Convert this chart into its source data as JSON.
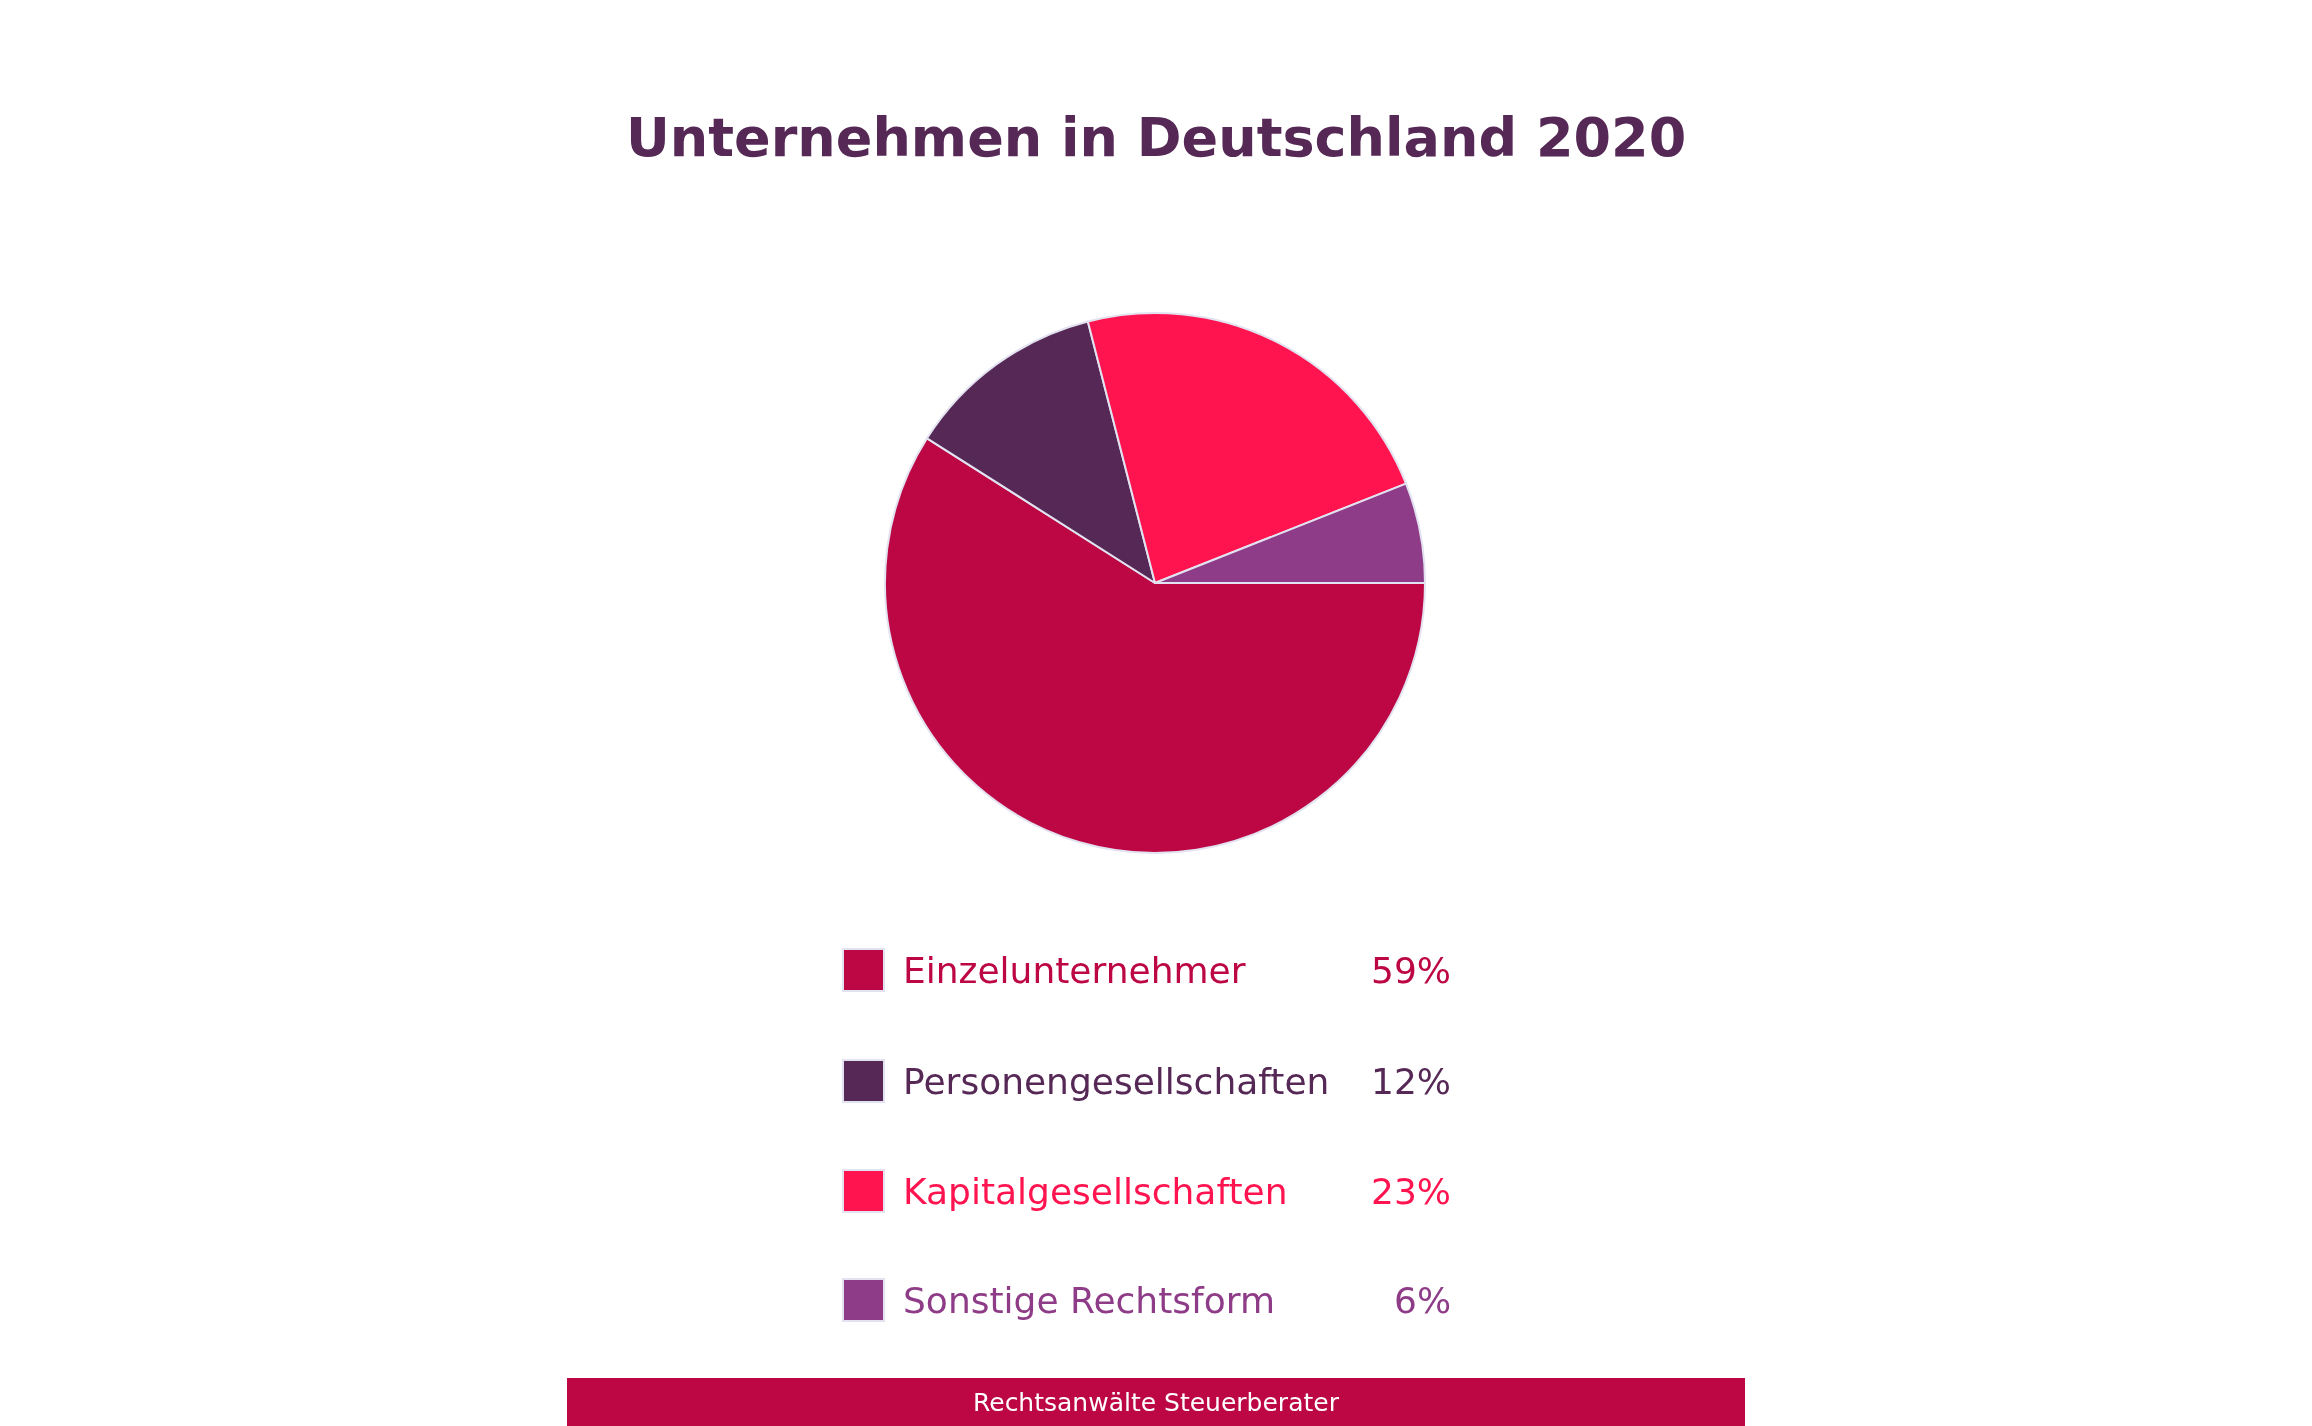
{
  "chart_data": {
    "type": "pie",
    "title": "Unternehmen in Deutschland 2020",
    "categories": [
      "Einzelunternehmer",
      "Personengesellschaften",
      "Kapitalgesellschaften",
      "Sonstige Rechtsform"
    ],
    "values": [
      59,
      12,
      23,
      6
    ],
    "value_labels": [
      "59%",
      "12%",
      "23%",
      "6%"
    ],
    "colors": [
      "#bc0744",
      "#552855",
      "#ff1450",
      "#8e3c87"
    ],
    "legend": "bottom",
    "annotations": [
      "Rechtsanwälte Steuerberater"
    ]
  }
}
